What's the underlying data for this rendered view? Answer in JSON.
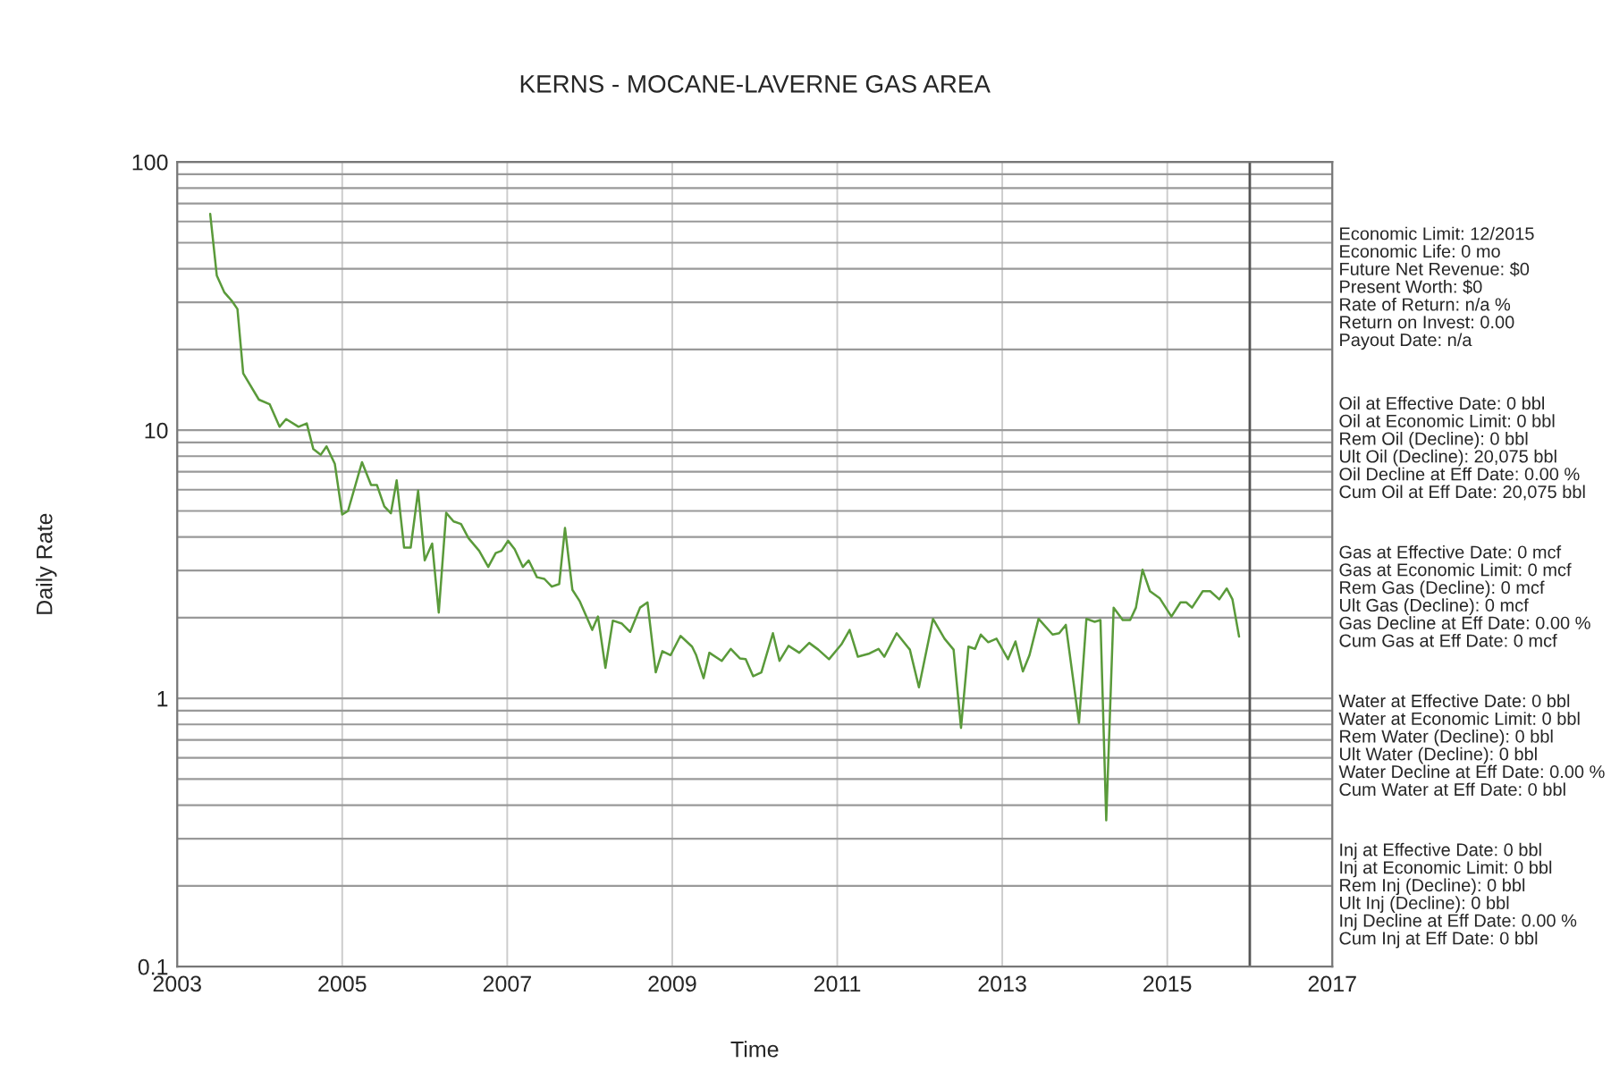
{
  "chart_data": {
    "type": "line",
    "title": "KERNS - MOCANE-LAVERNE GAS AREA",
    "xlabel": "Time",
    "ylabel": "Daily Rate",
    "log": "y",
    "grid": true,
    "legend": false,
    "marker": "none",
    "line_style": "solid",
    "xlim": [
      2003,
      2017
    ],
    "xticks": [
      2003,
      2005,
      2007,
      2009,
      2011,
      2013,
      2015,
      2017
    ],
    "ylim": [
      0.1,
      100
    ],
    "yticks": [
      0.1,
      1,
      10,
      100
    ],
    "ref_lines": [
      {
        "axis": "x",
        "value": 2016,
        "color": "#555555"
      }
    ],
    "series": [
      {
        "color": "#5a9a3a",
        "x": [
          2003.4,
          2003.48,
          2003.57,
          2003.66,
          2003.73,
          2003.8,
          2003.99,
          2004.12,
          2004.24,
          2004.32,
          2004.47,
          2004.57,
          2004.65,
          2004.74,
          2004.81,
          2004.91,
          2005.0,
          2005.07,
          2005.24,
          2005.35,
          2005.42,
          2005.51,
          2005.59,
          2005.66,
          2005.75,
          2005.83,
          2005.92,
          2006.0,
          2006.09,
          2006.17,
          2006.26,
          2006.35,
          2006.44,
          2006.53,
          2006.66,
          2006.77,
          2006.86,
          2006.93,
          2007.01,
          2007.09,
          2007.19,
          2007.26,
          2007.36,
          2007.45,
          2007.54,
          2007.63,
          2007.7,
          2007.79,
          2007.88,
          2008.03,
          2008.1,
          2008.19,
          2008.28,
          2008.39,
          2008.49,
          2008.61,
          2008.7,
          2008.8,
          2008.88,
          2008.98,
          2009.1,
          2009.24,
          2009.29,
          2009.38,
          2009.45,
          2009.6,
          2009.71,
          2009.82,
          2009.89,
          2009.98,
          2010.08,
          2010.22,
          2010.3,
          2010.41,
          2010.54,
          2010.66,
          2010.77,
          2010.9,
          2011.05,
          2011.15,
          2011.25,
          2011.39,
          2011.5,
          2011.57,
          2011.72,
          2011.88,
          2011.99,
          2012.16,
          2012.3,
          2012.41,
          2012.5,
          2012.59,
          2012.67,
          2012.74,
          2012.83,
          2012.93,
          2013.07,
          2013.16,
          2013.25,
          2013.33,
          2013.44,
          2013.61,
          2013.69,
          2013.77,
          2013.93,
          2014.02,
          2014.12,
          2014.19,
          2014.26,
          2014.35,
          2014.46,
          2014.55,
          2014.62,
          2014.7,
          2014.79,
          2014.91,
          2015.05,
          2015.16,
          2015.23,
          2015.3,
          2015.43,
          2015.52,
          2015.63,
          2015.72,
          2015.79,
          2015.87
        ],
        "values": [
          64,
          37.7,
          32.7,
          30.4,
          28.3,
          16.3,
          13.0,
          12.5,
          10.3,
          11.0,
          10.3,
          10.6,
          8.5,
          8.1,
          8.7,
          7.5,
          4.85,
          5.0,
          7.6,
          6.25,
          6.25,
          5.2,
          4.9,
          6.5,
          3.65,
          3.65,
          5.95,
          3.27,
          3.78,
          2.09,
          4.92,
          4.57,
          4.47,
          3.96,
          3.55,
          3.09,
          3.48,
          3.55,
          3.87,
          3.6,
          3.09,
          3.27,
          2.83,
          2.79,
          2.61,
          2.67,
          4.32,
          2.54,
          2.3,
          1.8,
          2.02,
          1.3,
          1.95,
          1.9,
          1.77,
          2.18,
          2.28,
          1.25,
          1.5,
          1.45,
          1.71,
          1.56,
          1.45,
          1.19,
          1.48,
          1.38,
          1.53,
          1.41,
          1.4,
          1.21,
          1.25,
          1.75,
          1.38,
          1.57,
          1.48,
          1.61,
          1.52,
          1.4,
          1.59,
          1.8,
          1.43,
          1.47,
          1.53,
          1.43,
          1.75,
          1.52,
          1.1,
          1.98,
          1.67,
          1.52,
          0.776,
          1.56,
          1.53,
          1.73,
          1.62,
          1.67,
          1.4,
          1.63,
          1.26,
          1.45,
          1.98,
          1.73,
          1.75,
          1.88,
          0.81,
          1.98,
          1.93,
          1.96,
          0.351,
          2.18,
          1.96,
          1.96,
          2.18,
          3.02,
          2.51,
          2.36,
          2.02,
          2.28,
          2.28,
          2.18,
          2.51,
          2.51,
          2.34,
          2.57,
          2.34,
          1.7
        ]
      }
    ],
    "annotations": [
      "Economic Limit: 12/2015\nEconomic Life: 0 mo\nFuture Net Revenue: $0\nPresent Worth: $0\nRate of Return: n/a %\nReturn on Invest: 0.00\nPayout Date: n/a",
      "Oil at Effective Date: 0 bbl\nOil at Economic Limit: 0 bbl\nRem Oil (Decline): 0 bbl\nUlt Oil (Decline): 20,075 bbl\nOil Decline at Eff Date: 0.00 %\nCum Oil at Eff Date: 20,075 bbl",
      "Gas at Effective Date: 0 mcf\nGas at Economic Limit: 0 mcf\nRem Gas (Decline): 0 mcf\nUlt Gas (Decline): 0 mcf\nGas Decline at Eff Date: 0.00 %\nCum Gas at Eff Date: 0 mcf",
      "Water at Effective Date: 0 bbl\nWater at Economic Limit: 0 bbl\nRem Water (Decline): 0 bbl\nUlt Water (Decline): 0 bbl\nWater Decline at Eff Date: 0.00 %\nCum Water at Eff Date: 0 bbl",
      "Inj at Effective Date: 0 bbl\nInj at Economic Limit: 0 bbl\nRem Inj (Decline): 0 bbl\nUlt Inj (Decline): 0 bbl\nInj Decline at Eff Date: 0.00 %\nCum Inj at Eff Date: 0 bbl"
    ]
  }
}
